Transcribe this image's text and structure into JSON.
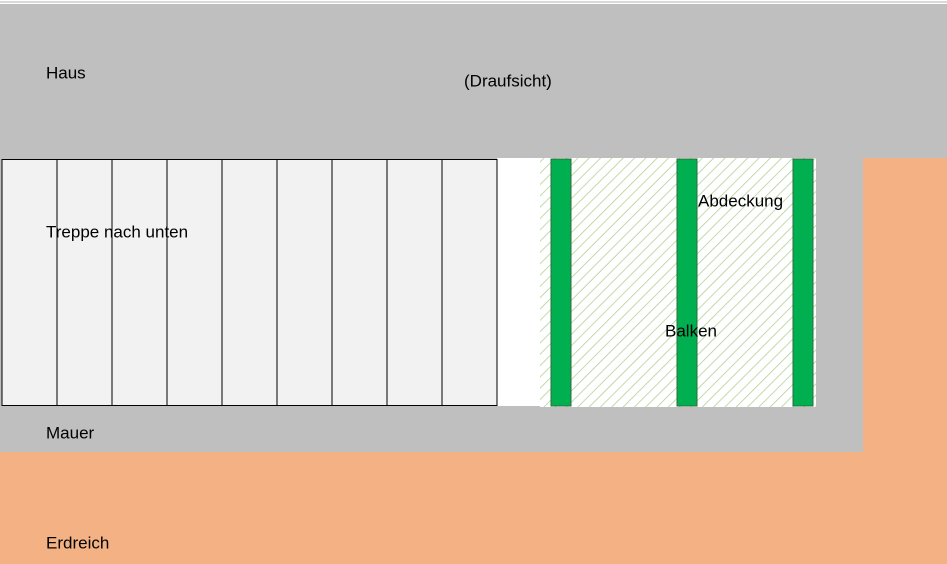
{
  "labels": {
    "house": "Haus",
    "view": "(Draufsicht)",
    "stairs": "Treppe nach unten",
    "cover": "Abdeckung",
    "beams": "Balken",
    "wall": "Mauer",
    "soil": "Erdreich"
  }
}
